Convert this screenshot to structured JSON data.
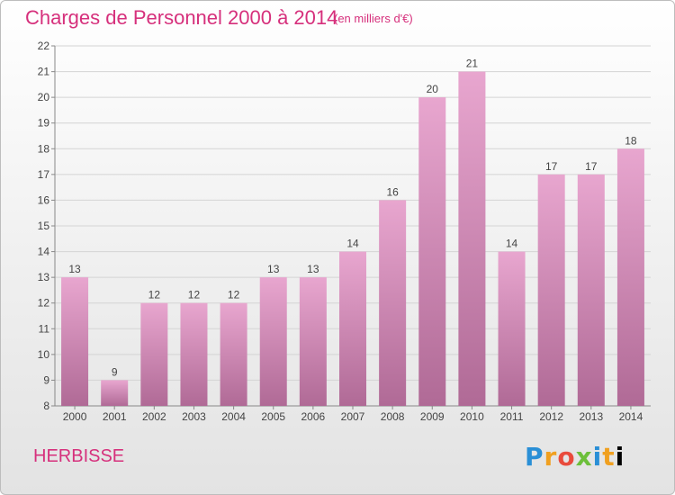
{
  "header": {
    "title": "Charges de Personnel 2000 à 2014",
    "subtitle": "(en milliers d'€)"
  },
  "footer": {
    "commune": "HERBISSE",
    "logo": "Proxiti"
  },
  "colors": {
    "title": "#d6307c",
    "bar_top": "#e8a6cf",
    "bar_bottom": "#b06a96"
  },
  "chart_data": {
    "type": "bar",
    "title": "Charges de Personnel 2000 à 2014",
    "subtitle": "(en milliers d'€)",
    "categories": [
      "2000",
      "2001",
      "2002",
      "2003",
      "2004",
      "2005",
      "2006",
      "2007",
      "2008",
      "2009",
      "2010",
      "2011",
      "2012",
      "2013",
      "2014"
    ],
    "values": [
      13,
      9,
      12,
      12,
      12,
      13,
      13,
      14,
      16,
      20,
      21,
      14,
      17,
      17,
      18
    ],
    "ylim": [
      8,
      22
    ],
    "yticks": [
      8,
      9,
      10,
      11,
      12,
      13,
      14,
      15,
      16,
      17,
      18,
      19,
      20,
      21,
      22
    ],
    "grid": true
  }
}
